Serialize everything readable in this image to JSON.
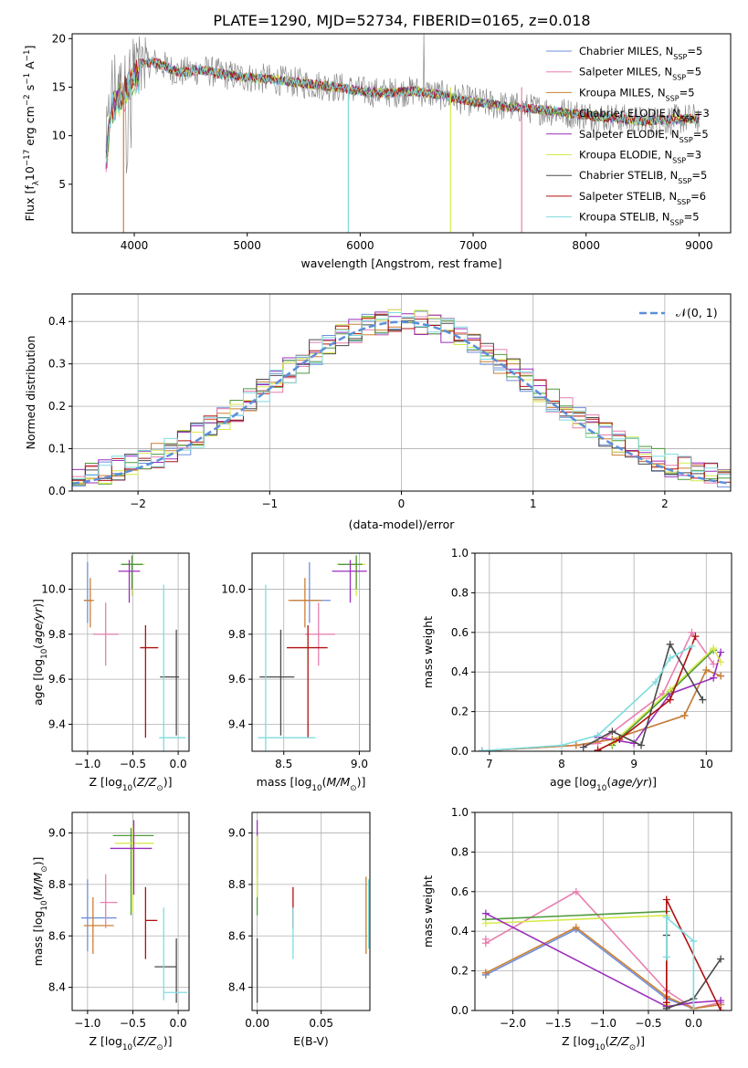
{
  "title": "PLATE=1290, MJD=52734, FIBERID=0165, z=0.018",
  "colors": {
    "chabrier_miles": "#6f8fdc",
    "salpeter_miles": "#e87fb0",
    "kroupa_miles": "#cd7f32",
    "chabrier_elodie": "#4f9a3c",
    "salpeter_elodie": "#9a2fbd",
    "kroupa_elodie": "#d7ea4a",
    "chabrier_stelib": "#4a4a4a",
    "salpeter_stelib": "#b01010",
    "kroupa_stelib": "#7fdce0",
    "gauss": "#5b8fd9"
  },
  "chart_data": [
    {
      "id": "spectrum",
      "type": "line",
      "xlabel": "wavelength [Angstrom, rest frame]",
      "ylabel": "Flux [f_λ 10^-17 erg cm^-2 s^-1 A^-1]",
      "xlim": [
        3450,
        9280
      ],
      "ylim": [
        0,
        20.5
      ],
      "xticks": [
        4000,
        5000,
        6000,
        7000,
        8000,
        9000
      ],
      "yticks": [
        5,
        10,
        15,
        20
      ],
      "grid": false,
      "legend": "top-right",
      "legend_labels": [
        "Chabrier MILES, NSSP=5",
        "Salpeter MILES, NSSP=5",
        "Kroupa MILES, NSSP=5",
        "Chabrier ELODIE, NSSP=3",
        "Salpeter ELODIE, NSSP=5",
        "Kroupa ELODIE, NSSP=3",
        "Chabrier STELIB, NSSP=5",
        "Salpeter STELIB, NSSP=6",
        "Kroupa STELIB, NSSP=5"
      ],
      "legend_keys": [
        "chabrier_miles",
        "salpeter_miles",
        "kroupa_miles",
        "chabrier_elodie",
        "salpeter_elodie",
        "kroupa_elodie",
        "chabrier_stelib",
        "salpeter_stelib",
        "kroupa_stelib"
      ],
      "continuum": [
        [
          3750,
          9
        ],
        [
          3800,
          14.5
        ],
        [
          3900,
          15.5
        ],
        [
          4000,
          17.5
        ],
        [
          4200,
          17.5
        ],
        [
          4400,
          16.5
        ],
        [
          4600,
          16.8
        ],
        [
          4800,
          16.3
        ],
        [
          5000,
          16
        ],
        [
          5200,
          15.8
        ],
        [
          5500,
          15.4
        ],
        [
          5800,
          15
        ],
        [
          6000,
          14.6
        ],
        [
          6200,
          14.4
        ],
        [
          6500,
          14.6
        ],
        [
          6700,
          14.2
        ],
        [
          7000,
          13.5
        ],
        [
          7300,
          13
        ],
        [
          7500,
          12.8
        ],
        [
          7800,
          12.4
        ],
        [
          8000,
          12.1
        ],
        [
          8500,
          11.5
        ],
        [
          9000,
          11.8
        ]
      ]
    },
    {
      "id": "residuals",
      "type": "bar",
      "xlabel": "(data-model)/error",
      "ylabel": "Normed distribution",
      "xlim": [
        -2.5,
        2.5
      ],
      "ylim": [
        0,
        0.465
      ],
      "xticks": [
        -2,
        -1,
        0,
        1,
        2
      ],
      "yticks": [
        0.0,
        0.1,
        0.2,
        0.3,
        0.4
      ],
      "grid": true,
      "legend": "top-right",
      "legend_labels": [
        "N(0,1)"
      ],
      "bin_width": 0.1
    },
    {
      "id": "age_vs_z",
      "type": "scatter",
      "xlabel": "Z [log10(Z/Z⊙)]",
      "ylabel": "age [log10(age/yr)]",
      "xlim": [
        -1.17,
        0.12
      ],
      "ylim": [
        9.28,
        10.16
      ],
      "xticks": [
        -1.0,
        -0.5,
        0.0
      ],
      "yticks": [
        9.4,
        9.6,
        9.8,
        10.0
      ],
      "grid": true,
      "points": [
        {
          "key": "chabrier_miles",
          "x": -1.0,
          "xerr": [
            0.04,
            0.04
          ],
          "y": 9.95,
          "yerr": [
            0.1,
            0.17
          ]
        },
        {
          "key": "kroupa_miles",
          "x": -0.97,
          "xerr": [
            0.07,
            0.04
          ],
          "y": 9.95,
          "yerr": [
            0.12,
            0.1
          ]
        },
        {
          "key": "salpeter_miles",
          "x": -0.8,
          "xerr": [
            0.14,
            0.14
          ],
          "y": 9.8,
          "yerr": [
            0.14,
            0.14
          ]
        },
        {
          "key": "kroupa_elodie",
          "x": -0.51,
          "xerr": [
            0.12,
            0.14
          ],
          "y": 10.11,
          "yerr": [
            0.14,
            0.04
          ]
        },
        {
          "key": "chabrier_elodie",
          "x": -0.51,
          "xerr": [
            0.12,
            0.12
          ],
          "y": 10.11,
          "yerr": [
            0.11,
            0.04
          ]
        },
        {
          "key": "salpeter_elodie",
          "x": -0.54,
          "xerr": [
            0.12,
            0.12
          ],
          "y": 10.08,
          "yerr": [
            0.14,
            0.05
          ]
        },
        {
          "key": "salpeter_stelib",
          "x": -0.36,
          "xerr": [
            0.06,
            0.14
          ],
          "y": 9.74,
          "yerr": [
            0.4,
            0.1
          ]
        },
        {
          "key": "chabrier_stelib",
          "x": -0.02,
          "xerr": [
            0.18,
            0.03
          ],
          "y": 9.61,
          "yerr": [
            0.26,
            0.21
          ]
        },
        {
          "key": "kroupa_stelib",
          "x": -0.16,
          "xerr": [
            0.05,
            0.24
          ],
          "y": 9.34,
          "yerr": [
            0.06,
            0.68
          ]
        }
      ]
    },
    {
      "id": "age_vs_mass",
      "type": "scatter",
      "xlabel": "mass [log10(M/M⊙)]",
      "ylabel": "",
      "xlim": [
        8.29,
        9.07
      ],
      "ylim": [
        9.28,
        10.16
      ],
      "xticks": [
        8.5,
        9.0
      ],
      "yticks": [
        9.4,
        9.6,
        9.8,
        10.0
      ],
      "grid": true,
      "points": [
        {
          "key": "chabrier_miles",
          "x": 8.67,
          "xerr": [
            0.12,
            0.14
          ],
          "y": 9.95,
          "yerr": [
            0.1,
            0.17
          ]
        },
        {
          "key": "kroupa_miles",
          "x": 8.64,
          "xerr": [
            0.11,
            0.11
          ],
          "y": 9.95,
          "yerr": [
            0.12,
            0.1
          ]
        },
        {
          "key": "salpeter_miles",
          "x": 8.73,
          "xerr": [
            0.09,
            0.11
          ],
          "y": 9.8,
          "yerr": [
            0.14,
            0.14
          ]
        },
        {
          "key": "kroupa_elodie",
          "x": 8.98,
          "xerr": [
            0.13,
            0.06
          ],
          "y": 10.11,
          "yerr": [
            0.14,
            0.04
          ]
        },
        {
          "key": "chabrier_elodie",
          "x": 8.98,
          "xerr": [
            0.12,
            0.04
          ],
          "y": 10.11,
          "yerr": [
            0.11,
            0.04
          ]
        },
        {
          "key": "salpeter_elodie",
          "x": 8.94,
          "xerr": [
            0.12,
            0.11
          ],
          "y": 10.08,
          "yerr": [
            0.14,
            0.05
          ]
        },
        {
          "key": "salpeter_stelib",
          "x": 8.66,
          "xerr": [
            0.14,
            0.13
          ],
          "y": 9.74,
          "yerr": [
            0.4,
            0.1
          ]
        },
        {
          "key": "chabrier_stelib",
          "x": 8.48,
          "xerr": [
            0.14,
            0.09
          ],
          "y": 9.61,
          "yerr": [
            0.26,
            0.21
          ]
        },
        {
          "key": "kroupa_stelib",
          "x": 8.38,
          "xerr": [
            0.05,
            0.33
          ],
          "y": 9.34,
          "yerr": [
            0.06,
            0.68
          ]
        }
      ]
    },
    {
      "id": "weight_vs_age",
      "type": "line",
      "xlabel": "age [log10(age/yr)]",
      "ylabel": "mass weight",
      "xlim": [
        6.8,
        10.35
      ],
      "ylim": [
        0,
        1.0
      ],
      "xticks": [
        7,
        8,
        9,
        10
      ],
      "yticks": [
        0.0,
        0.2,
        0.4,
        0.6,
        0.8,
        1.0
      ],
      "grid": true,
      "series": [
        {
          "key": "chabrier_miles",
          "x": [
            6.9,
            8.2,
            8.7,
            9.7,
            10.0,
            10.2
          ],
          "y": [
            0.002,
            0.03,
            0.06,
            0.18,
            0.41,
            0.38
          ]
        },
        {
          "key": "salpeter_miles",
          "x": [
            6.9,
            8.2,
            8.5,
            9.4,
            9.8,
            10.1
          ],
          "y": [
            0.002,
            0.03,
            0.04,
            0.29,
            0.6,
            0.44
          ]
        },
        {
          "key": "kroupa_miles",
          "x": [
            6.9,
            8.2,
            8.7,
            9.7,
            10.0,
            10.2
          ],
          "y": [
            0.002,
            0.03,
            0.06,
            0.18,
            0.41,
            0.38
          ]
        },
        {
          "key": "chabrier_elodie",
          "x": [
            8.7,
            9.5,
            10.1
          ],
          "y": [
            0.03,
            0.3,
            0.51
          ]
        },
        {
          "key": "salpeter_elodie",
          "x": [
            8.5,
            9.0,
            9.5,
            10.1,
            10.2
          ],
          "y": [
            0.07,
            0.04,
            0.29,
            0.37,
            0.5
          ]
        },
        {
          "key": "kroupa_elodie",
          "x": [
            8.7,
            9.5,
            10.1,
            10.2
          ],
          "y": [
            0.04,
            0.31,
            0.52,
            0.45
          ]
        },
        {
          "key": "chabrier_stelib",
          "x": [
            8.3,
            8.7,
            9.1,
            9.5,
            9.95
          ],
          "y": [
            0.02,
            0.1,
            0.03,
            0.54,
            0.26
          ]
        },
        {
          "key": "salpeter_stelib",
          "x": [
            8.5,
            8.8,
            9.5,
            9.85
          ],
          "y": [
            0.005,
            0.06,
            0.26,
            0.58
          ]
        },
        {
          "key": "kroupa_stelib",
          "x": [
            6.9,
            8.0,
            8.5,
            9.3,
            9.5,
            9.8
          ],
          "y": [
            0.002,
            0.03,
            0.08,
            0.35,
            0.47,
            0.53
          ]
        }
      ]
    },
    {
      "id": "mass_vs_z",
      "type": "scatter",
      "xlabel": "Z [log10(Z/Z⊙)]",
      "ylabel": "mass [log10(M/M⊙)]",
      "xlim": [
        -1.17,
        0.12
      ],
      "ylim": [
        8.31,
        9.08
      ],
      "xticks": [
        -1.0,
        -0.5,
        0.0
      ],
      "yticks": [
        8.4,
        8.6,
        8.8,
        9.0
      ],
      "grid": true,
      "points": [
        {
          "key": "chabrier_miles",
          "x": -1.0,
          "xerr": [
            0.07,
            0.32
          ],
          "y": 8.67,
          "yerr": [
            0.13,
            0.15
          ]
        },
        {
          "key": "kroupa_miles",
          "x": -0.94,
          "xerr": [
            0.1,
            0.23
          ],
          "y": 8.64,
          "yerr": [
            0.11,
            0.11
          ]
        },
        {
          "key": "salpeter_miles",
          "x": -0.8,
          "xerr": [
            0.06,
            0.13
          ],
          "y": 8.73,
          "yerr": [
            0.1,
            0.11
          ]
        },
        {
          "key": "chabrier_elodie",
          "x": -0.52,
          "xerr": [
            0.2,
            0.25
          ],
          "y": 8.99,
          "yerr": [
            0.31,
            0.03
          ]
        },
        {
          "key": "kroupa_elodie",
          "x": -0.5,
          "xerr": [
            0.2,
            0.23
          ],
          "y": 8.96,
          "yerr": [
            0.27,
            0.07
          ]
        },
        {
          "key": "salpeter_elodie",
          "x": -0.49,
          "xerr": [
            0.26,
            0.2
          ],
          "y": 8.94,
          "yerr": [
            0.18,
            0.11
          ]
        },
        {
          "key": "salpeter_stelib",
          "x": -0.36,
          "xerr": [
            0.0,
            0.13
          ],
          "y": 8.66,
          "yerr": [
            0.15,
            0.13
          ]
        },
        {
          "key": "chabrier_stelib",
          "x": -0.02,
          "xerr": [
            0.24,
            0.0
          ],
          "y": 8.48,
          "yerr": [
            0.14,
            0.11
          ]
        },
        {
          "key": "kroupa_stelib",
          "x": -0.16,
          "xerr": [
            0.0,
            0.26
          ],
          "y": 8.38,
          "yerr": [
            0.03,
            0.33
          ]
        }
      ]
    },
    {
      "id": "mass_vs_ebv",
      "type": "scatter",
      "xlabel": "E(B-V)",
      "ylabel": "",
      "xlim": [
        -0.004,
        0.088
      ],
      "ylim": [
        8.31,
        9.08
      ],
      "xticks": [
        0.0,
        0.05
      ],
      "yticks": [
        8.4,
        8.6,
        8.8,
        9.0
      ],
      "grid": true,
      "points": [
        {
          "key": "chabrier_elodie",
          "x": 0.0,
          "xerr": [
            0,
            0
          ],
          "y": 8.8,
          "yerr": [
            0.12,
            0.2
          ]
        },
        {
          "key": "salpeter_elodie",
          "x": 0.0,
          "xerr": [
            0,
            0
          ],
          "y": 8.94,
          "yerr": [
            0.11,
            0.11
          ]
        },
        {
          "key": "kroupa_elodie",
          "x": 0.0,
          "xerr": [
            0,
            0
          ],
          "y": 8.85,
          "yerr": [
            0.1,
            0.14
          ]
        },
        {
          "key": "chabrier_stelib",
          "x": 0.0,
          "xerr": [
            0,
            0
          ],
          "y": 8.48,
          "yerr": [
            0.14,
            0.11
          ]
        },
        {
          "key": "salpeter_stelib",
          "x": 0.028,
          "xerr": [
            0,
            0
          ],
          "y": 8.71,
          "yerr": [
            0.08,
            0.08
          ]
        },
        {
          "key": "kroupa_stelib",
          "x": 0.028,
          "xerr": [
            0,
            0
          ],
          "y": 8.61,
          "yerr": [
            0.1,
            0.1
          ]
        },
        {
          "key": "kroupa_miles",
          "x": 0.085,
          "xerr": [
            0,
            0
          ],
          "y": 8.68,
          "yerr": [
            0.15,
            0.15
          ]
        },
        {
          "key": "kroupa_stelib",
          "x": 0.087,
          "xerr": [
            0,
            0
          ],
          "y": 8.68,
          "yerr": [
            0.13,
            0.14
          ]
        }
      ]
    },
    {
      "id": "weight_vs_z",
      "type": "line",
      "xlabel": "Z [log10(Z/Z⊙)]",
      "ylabel": "mass weight",
      "xlim": [
        -2.42,
        0.42
      ],
      "ylim": [
        0,
        1.0
      ],
      "xticks": [
        -2.0,
        -1.5,
        -1.0,
        -0.5,
        0.0
      ],
      "yticks": [
        0.0,
        0.2,
        0.4,
        0.6,
        0.8,
        1.0
      ],
      "grid": true,
      "series": [
        {
          "key": "salpeter_miles",
          "x": [
            -2.3,
            -2.3,
            -1.3,
            -0.3,
            0.0,
            0.3
          ],
          "y": [
            0.36,
            0.34,
            0.6,
            0.1,
            0.01,
            0.04
          ]
        },
        {
          "key": "chabrier_miles",
          "x": [
            -2.3,
            -2.3,
            -1.3,
            -0.3,
            0.0,
            0.3
          ],
          "y": [
            0.18,
            0.18,
            0.41,
            0.06,
            0.01,
            0.03
          ]
        },
        {
          "key": "kroupa_miles",
          "x": [
            -2.3,
            -2.3,
            -1.3,
            -0.3,
            0.0,
            0.3
          ],
          "y": [
            0.19,
            0.19,
            0.42,
            0.07,
            0.01,
            0.03
          ]
        },
        {
          "key": "chabrier_elodie",
          "x": [
            -2.3,
            -0.3,
            -0.3
          ],
          "y": [
            0.46,
            0.5,
            0.02
          ]
        },
        {
          "key": "kroupa_elodie",
          "x": [
            -2.3,
            -0.3,
            -0.3
          ],
          "y": [
            0.44,
            0.48,
            0.03
          ]
        },
        {
          "key": "salpeter_elodie",
          "x": [
            -2.3,
            -0.3,
            0.0,
            0.3
          ],
          "y": [
            0.49,
            0.02,
            0.04,
            0.05
          ]
        },
        {
          "key": "chabrier_stelib",
          "x": [
            -0.3,
            -0.3,
            0.0,
            0.3
          ],
          "y": [
            0.38,
            0.01,
            0.06,
            0.26
          ]
        },
        {
          "key": "salpeter_stelib",
          "x": [
            -0.3,
            -0.3,
            0.3
          ],
          "y": [
            0.04,
            0.56,
            0.0
          ]
        },
        {
          "key": "kroupa_stelib",
          "x": [
            -0.3,
            -0.3,
            0.0,
            0.0
          ],
          "y": [
            0.27,
            0.47,
            0.35,
            0.0
          ]
        }
      ]
    }
  ]
}
